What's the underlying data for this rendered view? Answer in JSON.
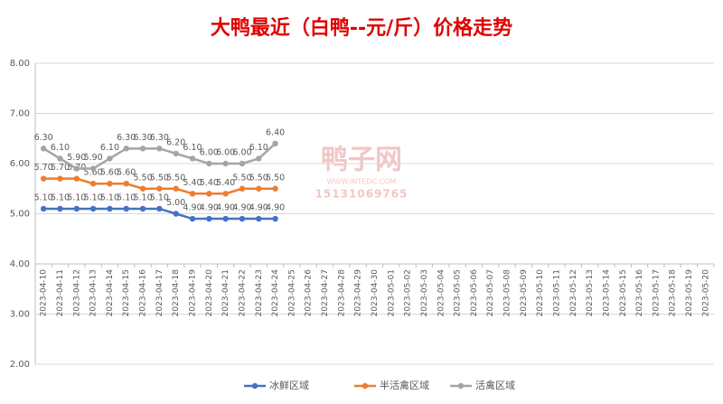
{
  "chart_data": {
    "type": "line",
    "title": "大鸭最近（白鸭--元/斤）价格走势",
    "watermark": {
      "brand": "鸭子网",
      "url": "WWW.INTEDC.COM",
      "phone": "15131069765"
    },
    "categories": [
      "2023-04-10",
      "2023-04-11",
      "2023-04-12",
      "2023-04-13",
      "2023-04-14",
      "2023-04-15",
      "2023-04-16",
      "2023-04-17",
      "2023-04-18",
      "2023-04-19",
      "2023-04-20",
      "2023-04-21",
      "2023-04-22",
      "2023-04-23",
      "2023-04-24",
      "2023-04-25",
      "2023-04-26",
      "2023-04-27",
      "2023-04-28",
      "2023-04-29",
      "2023-04-30",
      "2023-05-01",
      "2023-05-02",
      "2023-05-03",
      "2023-05-04",
      "2023-05-05",
      "2023-05-06",
      "2023-05-07",
      "2023-05-08",
      "2023-05-09",
      "2023-05-10",
      "2023-05-11",
      "2023-05-12",
      "2023-05-13",
      "2023-05-14",
      "2023-05-15",
      "2023-05-16",
      "2023-05-17",
      "2023-05-18",
      "2023-05-19",
      "2023-05-20"
    ],
    "series": [
      {
        "name": "冰鲜区域",
        "color": "#4472c4",
        "values": [
          5.1,
          5.1,
          5.1,
          5.1,
          5.1,
          5.1,
          5.1,
          5.1,
          5.0,
          4.9,
          4.9,
          4.9,
          4.9,
          4.9,
          4.9,
          null,
          null,
          null,
          null,
          null,
          null,
          null,
          null,
          null,
          null,
          null,
          null,
          null,
          null,
          null,
          null,
          null,
          null,
          null,
          null,
          null,
          null,
          null,
          null,
          null,
          null
        ],
        "value_labels": [
          "5.10",
          "5.10",
          "5.10",
          "5.10",
          "5.10",
          "5.10",
          "5.10",
          "5.10",
          "5.00",
          "4.90",
          "4.90",
          "4.90",
          "4.90",
          "4.90",
          "4.90",
          null,
          null,
          null,
          null,
          null,
          null,
          null,
          null,
          null,
          null,
          null,
          null,
          null,
          null,
          null,
          null,
          null,
          null,
          null,
          null,
          null,
          null,
          null,
          null,
          null,
          null
        ]
      },
      {
        "name": "半活禽区域",
        "color": "#ed7d31",
        "values": [
          5.7,
          5.7,
          5.7,
          5.6,
          5.6,
          5.6,
          5.5,
          5.5,
          5.5,
          5.4,
          5.4,
          5.4,
          5.5,
          5.5,
          5.5,
          null,
          null,
          null,
          null,
          null,
          null,
          null,
          null,
          null,
          null,
          null,
          null,
          null,
          null,
          null,
          null,
          null,
          null,
          null,
          null,
          null,
          null,
          null,
          null,
          null,
          null
        ],
        "value_labels": [
          "5.70",
          "5.70",
          "5.70",
          "5.60",
          "5.60",
          "5.60",
          "5.50",
          "5.50",
          "5.50",
          "5.40",
          "5.40",
          "5.40",
          "5.50",
          "5.50",
          "5.50",
          null,
          null,
          null,
          null,
          null,
          null,
          null,
          null,
          null,
          null,
          null,
          null,
          null,
          null,
          null,
          null,
          null,
          null,
          null,
          null,
          null,
          null,
          null,
          null,
          null,
          null
        ]
      },
      {
        "name": "活禽区域",
        "color": "#a5a5a5",
        "values": [
          6.3,
          6.1,
          5.9,
          5.9,
          6.1,
          6.3,
          6.3,
          6.3,
          6.2,
          6.1,
          6.0,
          6.0,
          6.0,
          6.1,
          6.4,
          null,
          null,
          null,
          null,
          null,
          null,
          null,
          null,
          null,
          null,
          null,
          null,
          null,
          null,
          null,
          null,
          null,
          null,
          null,
          null,
          null,
          null,
          null,
          null,
          null,
          null
        ],
        "value_labels": [
          "6.30",
          "6.10",
          "5.90",
          "5.90",
          "6.10",
          "6.30",
          "6.30",
          "6.30",
          "6.20",
          "6.10",
          "6.00",
          "6.00",
          "6.00",
          "6.10",
          "6.40",
          null,
          null,
          null,
          null,
          null,
          null,
          null,
          null,
          null,
          null,
          null,
          null,
          null,
          null,
          null,
          null,
          null,
          null,
          null,
          null,
          null,
          null,
          null,
          null,
          null,
          null
        ]
      }
    ],
    "ylim": [
      2,
      8
    ],
    "yticks": [
      {
        "value": 2,
        "label": "2.00"
      },
      {
        "value": 3,
        "label": "3.00"
      },
      {
        "value": 4,
        "label": "4.00"
      },
      {
        "value": 5,
        "label": "5.00"
      },
      {
        "value": 6,
        "label": "6.00"
      },
      {
        "value": 7,
        "label": "7.00"
      },
      {
        "value": 8,
        "label": "8.00"
      }
    ],
    "xaxis_crosses": 4,
    "grid": true,
    "legend": "bottom"
  }
}
